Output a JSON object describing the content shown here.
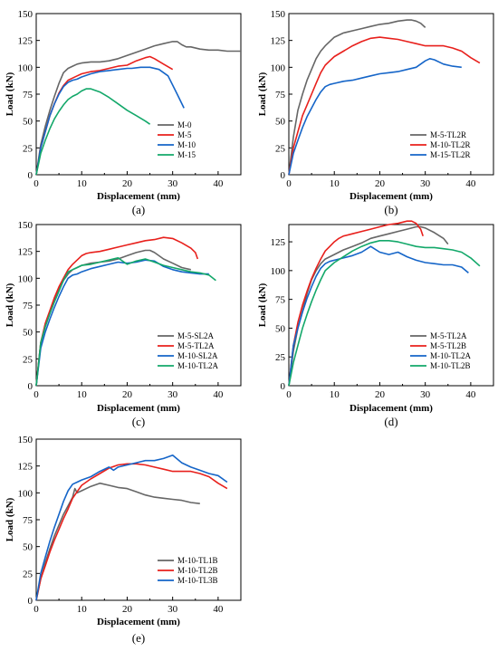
{
  "colors": {
    "gray": "#666666",
    "red": "#e8201c",
    "blue": "#1565c8",
    "green": "#13a86a"
  },
  "chart_data": [
    {
      "id": "a",
      "type": "line",
      "caption": "(a)",
      "xlabel": "Displacement (mm)",
      "ylabel": "Load (kN)",
      "xlim": [
        0,
        45
      ],
      "ylim": [
        0,
        150
      ],
      "xticks": [
        0,
        10,
        20,
        30,
        40
      ],
      "yticks": [
        0,
        25,
        50,
        75,
        100,
        125,
        150
      ],
      "grid": false,
      "legend_position": "bottom-right",
      "series": [
        {
          "name": "M-0",
          "color": "gray",
          "x": [
            0,
            1,
            2,
            3,
            4,
            5,
            6,
            7,
            8,
            9,
            10,
            12,
            14,
            16,
            18,
            20,
            22,
            24,
            26,
            28,
            30,
            31,
            32,
            33,
            34,
            36,
            38,
            40,
            42,
            45
          ],
          "y": [
            0,
            28,
            45,
            60,
            73,
            85,
            95,
            99,
            101,
            103,
            104,
            105,
            105,
            106,
            108,
            111,
            114,
            117,
            120,
            122,
            124,
            124,
            121,
            119,
            119,
            117,
            116,
            116,
            115,
            115
          ]
        },
        {
          "name": "M-5",
          "color": "red",
          "x": [
            0,
            1,
            2,
            3,
            4,
            5,
            6,
            7,
            8,
            9,
            10,
            12,
            14,
            16,
            18,
            20,
            22,
            24,
            25,
            26,
            28,
            30
          ],
          "y": [
            0,
            25,
            40,
            55,
            66,
            76,
            83,
            88,
            90,
            92,
            94,
            96,
            97,
            99,
            101,
            102,
            106,
            109,
            110,
            108,
            103,
            98
          ]
        },
        {
          "name": "M-10",
          "color": "blue",
          "x": [
            0,
            1,
            2,
            3,
            4,
            5,
            6,
            7,
            8,
            9,
            10,
            12,
            14,
            16,
            18,
            20,
            21,
            23,
            25,
            27,
            29,
            31,
            32.5
          ],
          "y": [
            0,
            25,
            40,
            55,
            66,
            75,
            82,
            86,
            88,
            89,
            91,
            94,
            96,
            97,
            98,
            99,
            99,
            100,
            100,
            98,
            92,
            75,
            62
          ]
        },
        {
          "name": "M-15",
          "color": "green",
          "x": [
            0,
            1,
            2,
            3,
            4,
            5,
            6,
            7,
            8,
            9,
            10,
            11,
            12,
            14,
            16,
            18,
            20,
            22,
            24,
            25
          ],
          "y": [
            0,
            20,
            32,
            43,
            52,
            59,
            65,
            70,
            73,
            75,
            78,
            80,
            80,
            77,
            72,
            66,
            60,
            55,
            50,
            47
          ]
        }
      ]
    },
    {
      "id": "b",
      "type": "line",
      "caption": "(b)",
      "xlabel": "Displacement (mm)",
      "ylabel": "Load (kN)",
      "xlim": [
        0,
        45
      ],
      "ylim": [
        0,
        150
      ],
      "xticks": [
        0,
        10,
        20,
        30,
        40
      ],
      "yticks": [
        0,
        25,
        50,
        75,
        100,
        125,
        150
      ],
      "grid": false,
      "legend_position": "bottom-right",
      "series": [
        {
          "name": "M-5-TL2R",
          "color": "gray",
          "x": [
            0,
            1,
            2,
            3,
            4,
            5,
            6,
            7,
            8,
            10,
            12,
            14,
            16,
            18,
            20,
            22,
            24,
            26,
            27,
            28,
            29,
            30
          ],
          "y": [
            0,
            35,
            60,
            75,
            88,
            98,
            108,
            115,
            120,
            128,
            132,
            134,
            136,
            138,
            140,
            141,
            143,
            144,
            144,
            143,
            141,
            137
          ]
        },
        {
          "name": "M-10-TL2R",
          "color": "red",
          "x": [
            0,
            1,
            2,
            3,
            4,
            5,
            6,
            7,
            8,
            9,
            10,
            12,
            14,
            16,
            18,
            20,
            22,
            24,
            26,
            28,
            30,
            32,
            34,
            36,
            38,
            40,
            42
          ],
          "y": [
            0,
            25,
            40,
            55,
            65,
            75,
            85,
            95,
            102,
            106,
            110,
            115,
            120,
            124,
            127,
            128,
            127,
            126,
            124,
            122,
            120,
            120,
            120,
            118,
            115,
            109,
            104
          ]
        },
        {
          "name": "M-15-TL2R",
          "color": "blue",
          "x": [
            0,
            1,
            2,
            3,
            4,
            5,
            6,
            7,
            8,
            9,
            10,
            12,
            14,
            16,
            18,
            20,
            22,
            24,
            26,
            28,
            30,
            31,
            32,
            34,
            36,
            38
          ],
          "y": [
            0,
            20,
            32,
            44,
            54,
            62,
            70,
            77,
            82,
            84,
            85,
            87,
            88,
            90,
            92,
            94,
            95,
            96,
            98,
            100,
            106,
            108,
            107,
            103,
            101,
            100
          ]
        }
      ]
    },
    {
      "id": "c",
      "type": "line",
      "caption": "(c)",
      "xlabel": "Displacement (mm)",
      "ylabel": "Load (kN)",
      "xlim": [
        0,
        45
      ],
      "ylim": [
        0,
        150
      ],
      "xticks": [
        0,
        10,
        20,
        30,
        40
      ],
      "yticks": [
        0,
        25,
        50,
        75,
        100,
        125,
        150
      ],
      "grid": false,
      "legend_position": "bottom-right",
      "series": [
        {
          "name": "M-5-SL2A",
          "color": "gray",
          "x": [
            0,
            1,
            2,
            3,
            4,
            5,
            6,
            7,
            8,
            9,
            10,
            12,
            14,
            16,
            18,
            20,
            22,
            24,
            25,
            26,
            28,
            30,
            32,
            34
          ],
          "y": [
            0,
            40,
            55,
            68,
            80,
            90,
            98,
            104,
            108,
            110,
            112,
            114,
            115,
            116,
            118,
            121,
            124,
            126,
            126,
            124,
            118,
            114,
            110,
            108
          ]
        },
        {
          "name": "M-5-TL2A",
          "color": "red",
          "x": [
            0,
            1,
            2,
            3,
            4,
            5,
            6,
            7,
            8,
            9,
            10,
            11,
            12,
            14,
            16,
            18,
            20,
            22,
            24,
            26,
            28,
            30,
            32,
            34,
            35,
            35.5
          ],
          "y": [
            0,
            40,
            58,
            70,
            82,
            92,
            100,
            108,
            113,
            117,
            121,
            123,
            124,
            125,
            127,
            129,
            131,
            133,
            135,
            136,
            138,
            137,
            133,
            128,
            124,
            118
          ]
        },
        {
          "name": "M-10-SL2A",
          "color": "blue",
          "x": [
            0,
            1,
            2,
            3,
            4,
            5,
            6,
            7,
            8,
            9,
            10,
            12,
            14,
            16,
            18,
            20,
            22,
            24,
            26,
            28,
            30,
            32,
            34,
            36,
            38
          ],
          "y": [
            0,
            35,
            50,
            62,
            73,
            83,
            92,
            100,
            103,
            104,
            106,
            109,
            111,
            113,
            115,
            114,
            115,
            117,
            116,
            111,
            108,
            106,
            105,
            104,
            104
          ]
        },
        {
          "name": "M-10-TL2A",
          "color": "green",
          "x": [
            0,
            1,
            2,
            3,
            4,
            5,
            6,
            7,
            8,
            9,
            10,
            12,
            14,
            16,
            18,
            20,
            22,
            24,
            26,
            28,
            30,
            32,
            34,
            36,
            38,
            39.5
          ],
          "y": [
            0,
            40,
            55,
            67,
            78,
            88,
            98,
            106,
            108,
            110,
            112,
            113,
            115,
            117,
            119,
            113,
            116,
            118,
            115,
            112,
            110,
            108,
            106,
            105,
            103,
            98
          ]
        }
      ]
    },
    {
      "id": "d",
      "type": "line",
      "caption": "(d)",
      "xlabel": "Displacement (mm)",
      "ylabel": "Load (kN)",
      "xlim": [
        0,
        45
      ],
      "ylim": [
        0,
        140
      ],
      "xticks": [
        0,
        10,
        20,
        30,
        40
      ],
      "yticks": [
        0,
        25,
        50,
        75,
        100,
        125
      ],
      "grid": false,
      "legend_position": "bottom-right",
      "series": [
        {
          "name": "M-5-TL2A",
          "color": "gray",
          "x": [
            0,
            1,
            2,
            3,
            4,
            5,
            6,
            7,
            8,
            10,
            12,
            14,
            16,
            18,
            20,
            22,
            24,
            26,
            28,
            29,
            30,
            32,
            34,
            35
          ],
          "y": [
            0,
            30,
            50,
            65,
            80,
            92,
            100,
            106,
            110,
            114,
            118,
            121,
            124,
            128,
            130,
            132,
            134,
            136,
            138,
            138,
            137,
            133,
            128,
            123
          ]
        },
        {
          "name": "M-5-TL2B",
          "color": "red",
          "x": [
            0,
            1,
            2,
            3,
            4,
            5,
            6,
            7,
            8,
            9,
            10,
            11,
            12,
            14,
            16,
            18,
            20,
            22,
            24,
            26,
            27,
            28,
            29,
            29.5
          ],
          "y": [
            0,
            35,
            55,
            70,
            82,
            93,
            102,
            110,
            117,
            121,
            125,
            128,
            130,
            132,
            134,
            136,
            138,
            140,
            141,
            143,
            143,
            141,
            136,
            130
          ]
        },
        {
          "name": "M-10-TL2A",
          "color": "blue",
          "x": [
            0,
            1,
            2,
            3,
            4,
            5,
            6,
            7,
            8,
            9,
            10,
            12,
            14,
            16,
            18,
            20,
            22,
            24,
            26,
            28,
            30,
            32,
            34,
            36,
            38,
            39.5
          ],
          "y": [
            0,
            35,
            50,
            64,
            76,
            86,
            95,
            102,
            106,
            108,
            109,
            111,
            113,
            116,
            121,
            116,
            114,
            116,
            112,
            109,
            107,
            106,
            105,
            105,
            103,
            98
          ]
        },
        {
          "name": "M-10-TL2B",
          "color": "green",
          "x": [
            0,
            1,
            2,
            3,
            4,
            5,
            6,
            7,
            8,
            10,
            12,
            14,
            16,
            18,
            20,
            22,
            24,
            26,
            28,
            30,
            32,
            34,
            36,
            38,
            40,
            42
          ],
          "y": [
            0,
            20,
            35,
            50,
            62,
            73,
            83,
            92,
            100,
            107,
            112,
            117,
            121,
            124,
            126,
            126,
            125,
            123,
            121,
            120,
            120,
            119,
            118,
            116,
            111,
            104
          ]
        }
      ]
    },
    {
      "id": "e",
      "type": "line",
      "caption": "(e)",
      "xlabel": "Displacement (mm)",
      "ylabel": "Load (kN)",
      "xlim": [
        0,
        45
      ],
      "ylim": [
        0,
        150
      ],
      "xticks": [
        0,
        10,
        20,
        30,
        40
      ],
      "yticks": [
        0,
        25,
        50,
        75,
        100,
        125,
        150
      ],
      "grid": false,
      "legend_position": "bottom-right",
      "series": [
        {
          "name": "M-10-TL1B",
          "color": "gray",
          "x": [
            0,
            1,
            2,
            3,
            4,
            5,
            6,
            7,
            8,
            8.5,
            9,
            10,
            12,
            14,
            16,
            18,
            20,
            22,
            24,
            26,
            28,
            30,
            32,
            34,
            36
          ],
          "y": [
            0,
            20,
            35,
            48,
            60,
            70,
            80,
            88,
            96,
            104,
            100,
            102,
            106,
            109,
            107,
            105,
            104,
            101,
            98,
            96,
            95,
            94,
            93,
            91,
            90
          ]
        },
        {
          "name": "M-10-TL2B",
          "color": "red",
          "x": [
            0,
            1,
            2,
            3,
            4,
            5,
            6,
            7,
            8,
            9,
            10,
            12,
            14,
            16,
            18,
            20,
            22,
            24,
            26,
            28,
            30,
            32,
            34,
            36,
            38,
            40,
            42
          ],
          "y": [
            0,
            20,
            32,
            45,
            56,
            66,
            76,
            85,
            95,
            101,
            107,
            113,
            118,
            123,
            126,
            127,
            127,
            126,
            124,
            122,
            120,
            120,
            120,
            118,
            115,
            109,
            104
          ]
        },
        {
          "name": "M-10-TL3B",
          "color": "blue",
          "x": [
            0,
            1,
            2,
            3,
            4,
            5,
            6,
            7,
            8,
            9,
            10,
            12,
            14,
            16,
            17,
            18,
            20,
            22,
            24,
            26,
            28,
            30,
            32,
            34,
            36,
            38,
            40,
            42
          ],
          "y": [
            0,
            25,
            40,
            55,
            68,
            80,
            92,
            102,
            108,
            110,
            112,
            115,
            120,
            124,
            121,
            124,
            126,
            128,
            130,
            130,
            132,
            135,
            128,
            124,
            121,
            118,
            116,
            110
          ]
        }
      ]
    }
  ]
}
